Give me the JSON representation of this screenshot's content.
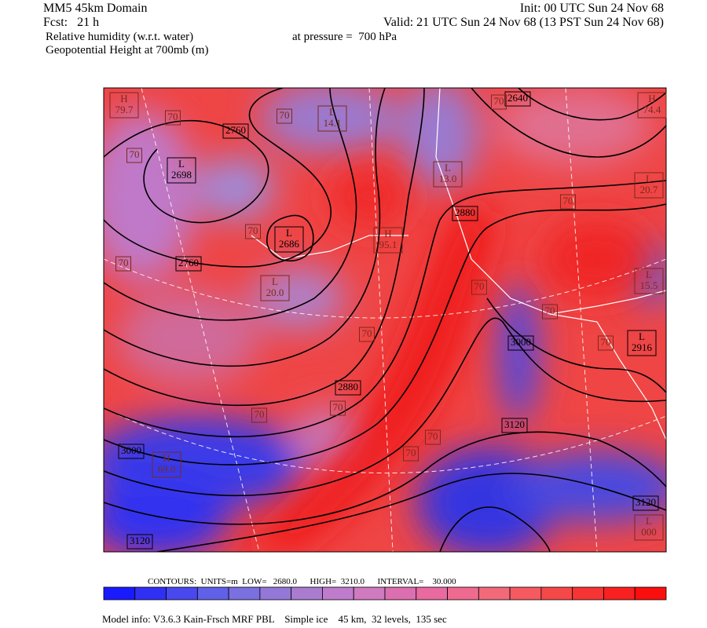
{
  "header": {
    "model": "MM5 45km Domain",
    "init": "Init: 00 UTC Sun 24 Nov 68",
    "fcst": "Fcst:   21 h",
    "valid": "Valid: 21 UTC Sun 24 Nov 68 (13 PST Sun 24 Nov 68)",
    "field1": "Relative humidity (w.r.t. water)",
    "pressure": "at pressure =  700 hPa",
    "field2": "Geopotential Height at 700mb (m)"
  },
  "map": {
    "height_labels": [
      "2760",
      "2760",
      "2880",
      "2640",
      "3000",
      "2880",
      "3120",
      "3000",
      "3120",
      "3120"
    ],
    "rh_labels": [
      "70",
      "70",
      "70",
      "70",
      "70",
      "70",
      "70",
      "70",
      "70",
      "70",
      "70",
      "70",
      "70",
      "70",
      "70"
    ],
    "centers": [
      {
        "kind": "H",
        "value": "79.7"
      },
      {
        "kind": "L",
        "value": "2698"
      },
      {
        "kind": "L",
        "value": "14.1"
      },
      {
        "kind": "L",
        "value": "2686"
      },
      {
        "kind": "H",
        "value": "95.1"
      },
      {
        "kind": "L",
        "value": "13.0"
      },
      {
        "kind": "H",
        "value": "74.4"
      },
      {
        "kind": "L",
        "value": "20.7"
      },
      {
        "kind": "L",
        "value": "20.0"
      },
      {
        "kind": "L",
        "value": "15.5"
      },
      {
        "kind": "L",
        "value": "2916"
      },
      {
        "kind": "H",
        "value": "69.0"
      },
      {
        "kind": "L",
        "value": "000"
      }
    ]
  },
  "footer": {
    "contours": "CONTOURS:  UNITS=m  LOW=   2680.0      HIGH=  3210.0      INTERVAL=    30.000",
    "model_info": "Model info: V3.6.3 Kain-Frsch MRF PBL    Simple ice    45 km,  32 levels,  135 sec"
  }
}
